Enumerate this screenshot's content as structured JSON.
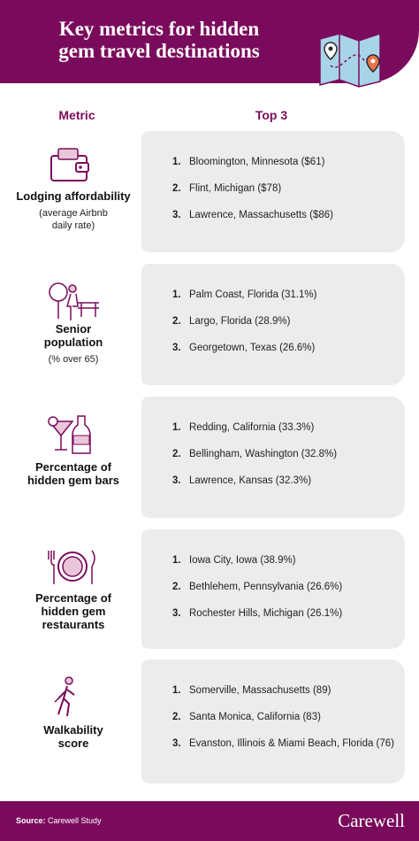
{
  "header": {
    "title_lines": [
      "Key metrics for hidden",
      "gem travel destinations"
    ]
  },
  "columns": [
    "Metric",
    "Top 3"
  ],
  "rows": [
    {
      "metric_lines": [
        "Lodging affordability"
      ],
      "note_lines": [
        "(average Airbnb",
        "daily rate)"
      ],
      "items": [
        {
          "rank": "1.",
          "text": "Bloomington, Minnesota ($61)"
        },
        {
          "rank": "2.",
          "text": "Flint, Michigan ($78)"
        },
        {
          "rank": "3.",
          "text": "Lawrence, Massachusetts ($86)"
        }
      ]
    },
    {
      "metric_lines": [
        "Senior",
        "population"
      ],
      "note_lines": [
        "(% over 65)"
      ],
      "items": [
        {
          "rank": "1.",
          "text": "Palm Coast, Florida (31.1%)"
        },
        {
          "rank": "2.",
          "text": "Largo, Florida (28.9%)"
        },
        {
          "rank": "3.",
          "text": "Georgetown, Texas (26.6%)"
        }
      ]
    },
    {
      "metric_lines": [
        "Percentage of",
        "hidden gem bars"
      ],
      "note_lines": [],
      "items": [
        {
          "rank": "1.",
          "text": "Redding, California (33.3%)"
        },
        {
          "rank": "2.",
          "text": "Bellingham, Washington (32.8%)"
        },
        {
          "rank": "3.",
          "text": "Lawrence, Kansas (32.3%)"
        }
      ]
    },
    {
      "metric_lines": [
        "Percentage of",
        "hidden gem",
        "restaurants"
      ],
      "note_lines": [],
      "items": [
        {
          "rank": "1.",
          "text": "Iowa City, Iowa (38.9%)"
        },
        {
          "rank": "2.",
          "text": "Bethlehem, Pennsylvania (26.6%)"
        },
        {
          "rank": "3.",
          "text": "Rochester Hills, Michigan (26.1%)"
        }
      ]
    },
    {
      "metric_lines": [
        "Walkability",
        "score"
      ],
      "note_lines": [],
      "items": [
        {
          "rank": "1.",
          "text": "Somerville, Massachusetts (89)"
        },
        {
          "rank": "2.",
          "text": "Santa Monica, California (83)"
        },
        {
          "rank": "3.",
          "text": "Evanston, Illinois & Miami Beach, Florida (76)"
        }
      ]
    }
  ],
  "footer": {
    "source_label": "Source:",
    "source": "Carewell Study",
    "brand": "Carewell"
  }
}
